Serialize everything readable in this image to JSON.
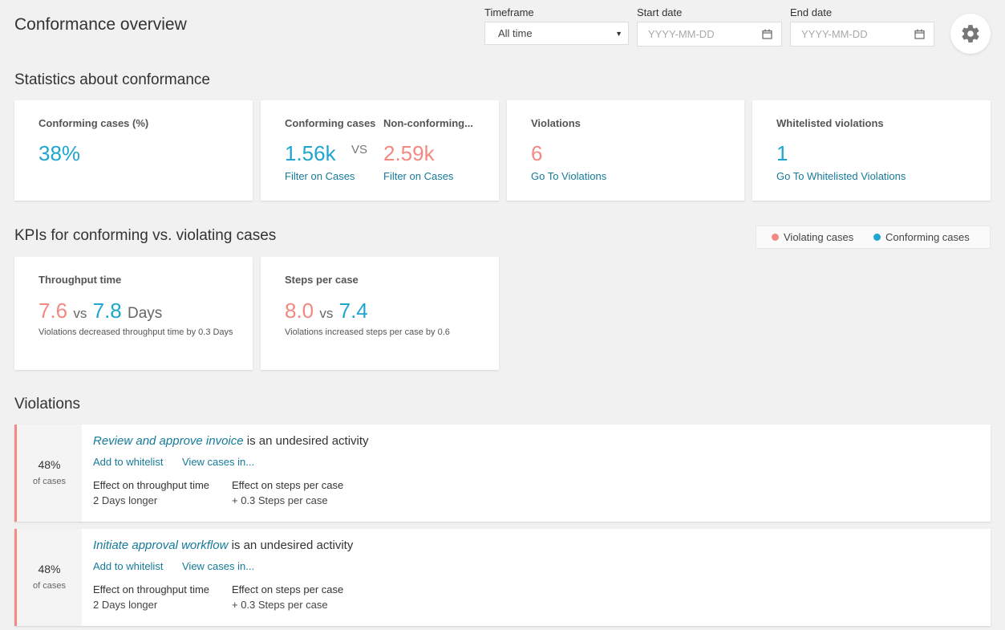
{
  "header": {
    "title": "Conformance overview",
    "timeframe_label": "Timeframe",
    "timeframe_value": "All time",
    "start_label": "Start date",
    "start_placeholder": "YYYY-MM-DD",
    "end_label": "End date",
    "end_placeholder": "YYYY-MM-DD",
    "settings_icon": "gear-icon"
  },
  "stats": {
    "section_title": "Statistics about conformance",
    "conforming_pct": {
      "label": "Conforming cases (%)",
      "value": "38%"
    },
    "conforming": {
      "label": "Conforming cases",
      "value": "1.56k",
      "link": "Filter on Cases"
    },
    "vs": "VS",
    "non_conforming": {
      "label": "Non-conforming...",
      "value": "2.59k",
      "link": "Filter on Cases"
    },
    "violations": {
      "label": "Violations",
      "value": "6",
      "link": "Go To Violations"
    },
    "whitelisted": {
      "label": "Whitelisted violations",
      "value": "1",
      "link": "Go To Whitelisted Violations"
    }
  },
  "kpis": {
    "section_title": "KPIs for conforming vs. violating cases",
    "legend": [
      {
        "label": "Violating cases",
        "color": "#f28983"
      },
      {
        "label": "Conforming cases",
        "color": "#1fa6cf"
      }
    ],
    "throughput": {
      "label": "Throughput time",
      "violating": "7.6",
      "vs": "vs",
      "conforming": "7.8",
      "unit": "Days",
      "note": "Violations decreased throughput time by 0.3 Days"
    },
    "steps": {
      "label": "Steps per case",
      "violating": "8.0",
      "vs": "vs",
      "conforming": "7.4",
      "note": "Violations increased steps per case by 0.6"
    }
  },
  "violations": {
    "section_title": "Violations",
    "items": [
      {
        "pct": "48%",
        "pct_sub": "of cases",
        "activity": "Review and approve invoice",
        "suffix": " is an undesired activity",
        "whitelist_link": "Add to whitelist",
        "view_link": "View cases in...",
        "throughput_header": "Effect on throughput time",
        "throughput_value": "2 Days longer",
        "steps_header": "Effect on steps per case",
        "steps_value": "+ 0.3 Steps per case"
      },
      {
        "pct": "48%",
        "pct_sub": "of cases",
        "activity": "Initiate approval workflow",
        "suffix": " is an undesired activity",
        "whitelist_link": "Add to whitelist",
        "view_link": "View cases in...",
        "throughput_header": "Effect on throughput time",
        "throughput_value": "2 Days longer",
        "steps_header": "Effect on steps per case",
        "steps_value": "+ 0.3 Steps per case"
      }
    ]
  }
}
